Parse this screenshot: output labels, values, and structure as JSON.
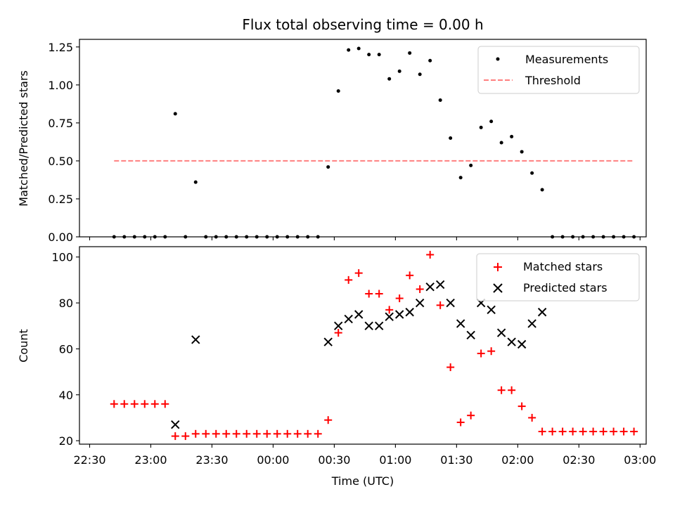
{
  "chart_data": {
    "title": "Flux total observing time = 0.00 h",
    "xlabel": "Time (UTC)",
    "x_ticks": [
      "22:30",
      "23:00",
      "23:30",
      "00:00",
      "00:30",
      "01:00",
      "01:30",
      "02:00",
      "02:30",
      "03:00"
    ],
    "times": [
      "22:42",
      "22:47",
      "22:52",
      "22:57",
      "23:02",
      "23:07",
      "23:12",
      "23:17",
      "23:22",
      "23:27",
      "23:32",
      "23:37",
      "23:42",
      "23:47",
      "23:52",
      "23:57",
      "00:02",
      "00:07",
      "00:12",
      "00:17",
      "00:22",
      "00:27",
      "00:32",
      "00:37",
      "00:42",
      "00:47",
      "00:52",
      "00:57",
      "01:02",
      "01:07",
      "01:12",
      "01:17",
      "01:22",
      "01:27",
      "01:32",
      "01:37",
      "01:42",
      "01:47",
      "01:52",
      "01:57",
      "02:02",
      "02:07",
      "02:12",
      "02:17",
      "02:22",
      "02:27",
      "02:32",
      "02:37",
      "02:42",
      "02:47",
      "02:52",
      "02:57"
    ],
    "panels": [
      {
        "type": "scatter",
        "ylabel": "Matched/Predicted stars",
        "ylim": [
          0,
          1.3
        ],
        "y_ticks": [
          "0.00",
          "0.25",
          "0.50",
          "0.75",
          "1.00",
          "1.25"
        ],
        "legend_location": "upper right",
        "series": [
          {
            "name": "Measurements",
            "marker": "dot",
            "color": "#000000",
            "points": [
              [
                "22:42",
                0
              ],
              [
                "22:47",
                0
              ],
              [
                "22:52",
                0
              ],
              [
                "22:57",
                0
              ],
              [
                "23:02",
                0
              ],
              [
                "23:07",
                0
              ],
              [
                "23:12",
                0.81
              ],
              [
                "23:17",
                0
              ],
              [
                "23:22",
                0.36
              ],
              [
                "23:27",
                0
              ],
              [
                "23:32",
                0
              ],
              [
                "23:37",
                0
              ],
              [
                "23:42",
                0
              ],
              [
                "23:47",
                0
              ],
              [
                "23:52",
                0
              ],
              [
                "23:57",
                0
              ],
              [
                "00:02",
                0
              ],
              [
                "00:07",
                0
              ],
              [
                "00:12",
                0
              ],
              [
                "00:17",
                0
              ],
              [
                "00:22",
                0
              ],
              [
                "00:27",
                0.46
              ],
              [
                "00:32",
                0.96
              ],
              [
                "00:37",
                1.23
              ],
              [
                "00:42",
                1.24
              ],
              [
                "00:47",
                1.2
              ],
              [
                "00:52",
                1.2
              ],
              [
                "00:57",
                1.04
              ],
              [
                "01:02",
                1.09
              ],
              [
                "01:07",
                1.21
              ],
              [
                "01:12",
                1.07
              ],
              [
                "01:17",
                1.16
              ],
              [
                "01:22",
                0.9
              ],
              [
                "01:27",
                0.65
              ],
              [
                "01:32",
                0.39
              ],
              [
                "01:37",
                0.47
              ],
              [
                "01:42",
                0.72
              ],
              [
                "01:47",
                0.76
              ],
              [
                "01:52",
                0.62
              ],
              [
                "01:57",
                0.66
              ],
              [
                "02:02",
                0.56
              ],
              [
                "02:07",
                0.42
              ],
              [
                "02:12",
                0.31
              ],
              [
                "02:17",
                0
              ],
              [
                "02:22",
                0
              ],
              [
                "02:27",
                0
              ],
              [
                "02:32",
                0
              ],
              [
                "02:37",
                0
              ],
              [
                "02:42",
                0
              ],
              [
                "02:47",
                0
              ],
              [
                "02:52",
                0
              ],
              [
                "02:57",
                0
              ]
            ]
          },
          {
            "name": "Threshold",
            "marker": "dashed-line",
            "color": "#ff7f7f",
            "value": 0.5,
            "x_range": [
              "22:42",
              "02:57"
            ]
          }
        ]
      },
      {
        "type": "scatter",
        "ylabel": "Count",
        "ylim": [
          18.5,
          104.5
        ],
        "y_ticks": [
          "20",
          "40",
          "60",
          "80",
          "100"
        ],
        "legend_location": "upper right",
        "series": [
          {
            "name": "Matched stars",
            "marker": "plus",
            "color": "#ff0000",
            "points": [
              [
                "22:42",
                36
              ],
              [
                "22:47",
                36
              ],
              [
                "22:52",
                36
              ],
              [
                "22:57",
                36
              ],
              [
                "23:02",
                36
              ],
              [
                "23:07",
                36
              ],
              [
                "23:12",
                22
              ],
              [
                "23:17",
                22
              ],
              [
                "23:22",
                23
              ],
              [
                "23:27",
                23
              ],
              [
                "23:32",
                23
              ],
              [
                "23:37",
                23
              ],
              [
                "23:42",
                23
              ],
              [
                "23:47",
                23
              ],
              [
                "23:52",
                23
              ],
              [
                "23:57",
                23
              ],
              [
                "00:02",
                23
              ],
              [
                "00:07",
                23
              ],
              [
                "00:12",
                23
              ],
              [
                "00:17",
                23
              ],
              [
                "00:22",
                23
              ],
              [
                "00:27",
                29
              ],
              [
                "00:32",
                67
              ],
              [
                "00:37",
                90
              ],
              [
                "00:42",
                93
              ],
              [
                "00:47",
                84
              ],
              [
                "00:52",
                84
              ],
              [
                "00:57",
                77
              ],
              [
                "01:02",
                82
              ],
              [
                "01:07",
                92
              ],
              [
                "01:12",
                86
              ],
              [
                "01:17",
                101
              ],
              [
                "01:22",
                79
              ],
              [
                "01:27",
                52
              ],
              [
                "01:32",
                28
              ],
              [
                "01:37",
                31
              ],
              [
                "01:42",
                58
              ],
              [
                "01:47",
                59
              ],
              [
                "01:52",
                42
              ],
              [
                "01:57",
                42
              ],
              [
                "02:02",
                35
              ],
              [
                "02:07",
                30
              ],
              [
                "02:12",
                24
              ],
              [
                "02:17",
                24
              ],
              [
                "02:22",
                24
              ],
              [
                "02:27",
                24
              ],
              [
                "02:32",
                24
              ],
              [
                "02:37",
                24
              ],
              [
                "02:42",
                24
              ],
              [
                "02:47",
                24
              ],
              [
                "02:52",
                24
              ],
              [
                "02:57",
                24
              ]
            ]
          },
          {
            "name": "Predicted stars",
            "marker": "x",
            "color": "#000000",
            "points": [
              [
                "23:12",
                27
              ],
              [
                "23:22",
                64
              ],
              [
                "00:27",
                63
              ],
              [
                "00:32",
                70
              ],
              [
                "00:37",
                73
              ],
              [
                "00:42",
                75
              ],
              [
                "00:47",
                70
              ],
              [
                "00:52",
                70
              ],
              [
                "00:57",
                74
              ],
              [
                "01:02",
                75
              ],
              [
                "01:07",
                76
              ],
              [
                "01:12",
                80
              ],
              [
                "01:17",
                87
              ],
              [
                "01:22",
                88
              ],
              [
                "01:27",
                80
              ],
              [
                "01:32",
                71
              ],
              [
                "01:37",
                66
              ],
              [
                "01:42",
                80
              ],
              [
                "01:47",
                77
              ],
              [
                "01:52",
                67
              ],
              [
                "01:57",
                63
              ],
              [
                "02:02",
                62
              ],
              [
                "02:07",
                71
              ],
              [
                "02:12",
                76
              ]
            ]
          }
        ]
      }
    ]
  }
}
